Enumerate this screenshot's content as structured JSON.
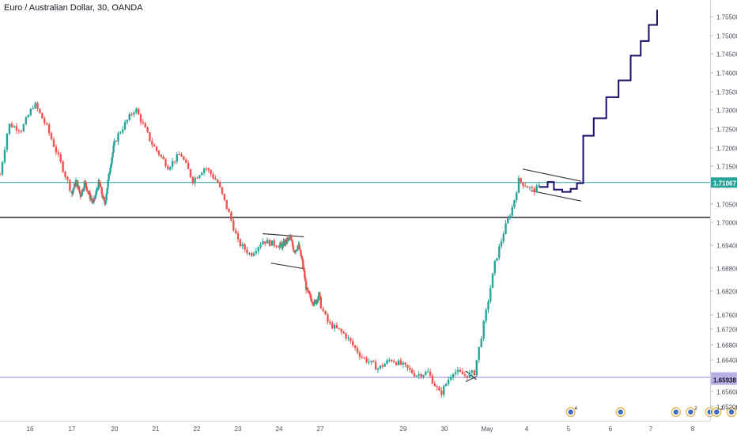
{
  "chart": {
    "title": "Euro / Australian Dollar, 30, OANDA"
  },
  "colors": {
    "up": "#26a69a",
    "down": "#ef5350",
    "projection": "#1a0e6b",
    "hline_teal": "#26a69a",
    "hline_black": "#131722",
    "hline_purple": "#9c8fd6",
    "price_badge": "#26a69a",
    "purple_badge": "#b9b1e6",
    "axis_text": "#4a4e5a",
    "trendline": "#3a3a3a"
  },
  "chart_data": {
    "type": "candlestick",
    "symbol": "Euro / Australian Dollar",
    "interval": "30",
    "exchange": "OANDA",
    "ylim": [
      1.6495,
      1.7585
    ],
    "xlim": [
      15.3,
      8.4
    ],
    "y_ticks": [
      "1.75500",
      "1.75000",
      "1.74500",
      "1.74000",
      "1.73500",
      "1.73000",
      "1.72500",
      "1.72000",
      "1.71500",
      "1.71000",
      "1.70500",
      "1.70000",
      "1.69400",
      "1.68800",
      "1.68200",
      "1.67600",
      "1.67200",
      "1.66800",
      "1.66400",
      "1.66000",
      "1.65600",
      "1.65200"
    ],
    "x_ticks": [
      {
        "label": "16",
        "t": 16
      },
      {
        "label": "17",
        "t": 17
      },
      {
        "label": "20",
        "t": 20
      },
      {
        "label": "21",
        "t": 21
      },
      {
        "label": "22",
        "t": 22
      },
      {
        "label": "23",
        "t": 23
      },
      {
        "label": "24",
        "t": 24
      },
      {
        "label": "27",
        "t": 27
      },
      {
        "label": "29",
        "t": 29
      },
      {
        "label": "30",
        "t": 30
      },
      {
        "label": "May",
        "t": 31
      },
      {
        "label": "4",
        "t": 32
      },
      {
        "label": "5",
        "t": 33
      },
      {
        "label": "6",
        "t": 34
      },
      {
        "label": "7",
        "t": 35
      },
      {
        "label": "8",
        "t": 36
      }
    ],
    "price_path": [
      [
        15.3,
        1.7128
      ],
      [
        15.5,
        1.7262
      ],
      [
        15.8,
        1.7248
      ],
      [
        16.1,
        1.7318
      ],
      [
        16.4,
        1.7255
      ],
      [
        16.7,
        1.7168
      ],
      [
        17.0,
        1.7078
      ],
      [
        17.3,
        1.7112
      ],
      [
        17.6,
        1.7072
      ],
      [
        17.9,
        1.7108
      ],
      [
        18.2,
        1.7075
      ],
      [
        18.5,
        1.7052
      ],
      [
        18.9,
        1.7108
      ],
      [
        19.3,
        1.7048
      ],
      [
        19.7,
        1.7152
      ],
      [
        20.1,
        1.7238
      ],
      [
        20.5,
        1.7305
      ],
      [
        20.9,
        1.7212
      ],
      [
        21.3,
        1.7148
      ],
      [
        21.6,
        1.7185
      ],
      [
        21.9,
        1.7112
      ],
      [
        22.2,
        1.7148
      ],
      [
        22.5,
        1.7108
      ],
      [
        22.8,
        1.7018
      ],
      [
        23.0,
        1.6948
      ],
      [
        23.3,
        1.6915
      ],
      [
        23.6,
        1.6952
      ],
      [
        23.9,
        1.6942
      ],
      [
        24.2,
        1.6938
      ],
      [
        24.5,
        1.695
      ],
      [
        24.8,
        1.696
      ],
      [
        25.1,
        1.6925
      ],
      [
        25.4,
        1.694
      ],
      [
        25.7,
        1.6895
      ],
      [
        26.0,
        1.6822
      ],
      [
        26.3,
        1.6802
      ],
      [
        26.6,
        1.6788
      ],
      [
        26.9,
        1.6812
      ],
      [
        27.2,
        1.6735
      ],
      [
        27.6,
        1.6705
      ],
      [
        28.0,
        1.6648
      ],
      [
        28.4,
        1.6618
      ],
      [
        28.7,
        1.6642
      ],
      [
        29.0,
        1.6625
      ],
      [
        29.3,
        1.6602
      ],
      [
        29.6,
        1.6608
      ],
      [
        29.9,
        1.6552
      ],
      [
        30.2,
        1.6612
      ],
      [
        30.5,
        1.66
      ],
      [
        30.7,
        1.6608
      ],
      [
        30.95,
        1.6752
      ],
      [
        31.2,
        1.6895
      ],
      [
        31.45,
        1.6985
      ],
      [
        31.65,
        1.7045
      ],
      [
        31.8,
        1.7112
      ],
      [
        32.0,
        1.7098
      ],
      [
        32.15,
        1.7085
      ],
      [
        32.3,
        1.7095
      ]
    ],
    "projection_path": [
      [
        32.3,
        1.7095
      ],
      [
        32.5,
        1.7108
      ],
      [
        32.65,
        1.7088
      ],
      [
        32.85,
        1.7082
      ],
      [
        33.05,
        1.709
      ],
      [
        33.2,
        1.7105
      ],
      [
        33.35,
        1.7232
      ],
      [
        33.6,
        1.7278
      ],
      [
        33.9,
        1.7335
      ],
      [
        34.2,
        1.738
      ],
      [
        34.5,
        1.7445
      ],
      [
        34.75,
        1.7485
      ],
      [
        34.95,
        1.7528
      ],
      [
        35.15,
        1.7568
      ]
    ],
    "horizontal_levels": [
      {
        "price": 1.71067,
        "label": "1.71067",
        "role": "teal"
      },
      {
        "price": 1.70135,
        "role": "black"
      },
      {
        "price": 1.65957,
        "label": "1.65957",
        "role": "purple"
      }
    ],
    "price_labels": {
      "last_price": "1.71067",
      "purple_level": "1.65957",
      "lower_level": "1.65938"
    },
    "patterns": [
      {
        "name": "flag-1",
        "upper": [
          [
            23.6,
            1.697
          ],
          [
            25.8,
            1.6962
          ]
        ],
        "lower": [
          [
            23.8,
            1.6893
          ],
          [
            25.9,
            1.6878
          ]
        ]
      },
      {
        "name": "flag-2",
        "upper": [
          [
            31.9,
            1.7142
          ],
          [
            33.3,
            1.711
          ]
        ],
        "lower": [
          [
            32.1,
            1.7085
          ],
          [
            33.3,
            1.7058
          ]
        ]
      },
      {
        "name": "wedge",
        "upper": [
          [
            30.5,
            1.6612
          ],
          [
            30.75,
            1.659
          ]
        ],
        "lower": [
          [
            30.5,
            1.6585
          ],
          [
            30.75,
            1.6598
          ]
        ]
      }
    ],
    "events": [
      {
        "t": 33.05,
        "count": "4"
      },
      {
        "t": 34.25,
        "count": ""
      },
      {
        "t": 35.6,
        "count": ""
      },
      {
        "t": 35.95,
        "count": "2"
      },
      {
        "t": 36.9,
        "count": ""
      },
      {
        "t": 37.25,
        "count": "2"
      },
      {
        "t": 38.25,
        "count": "3"
      },
      {
        "t": 38.6,
        "count": ""
      }
    ]
  }
}
